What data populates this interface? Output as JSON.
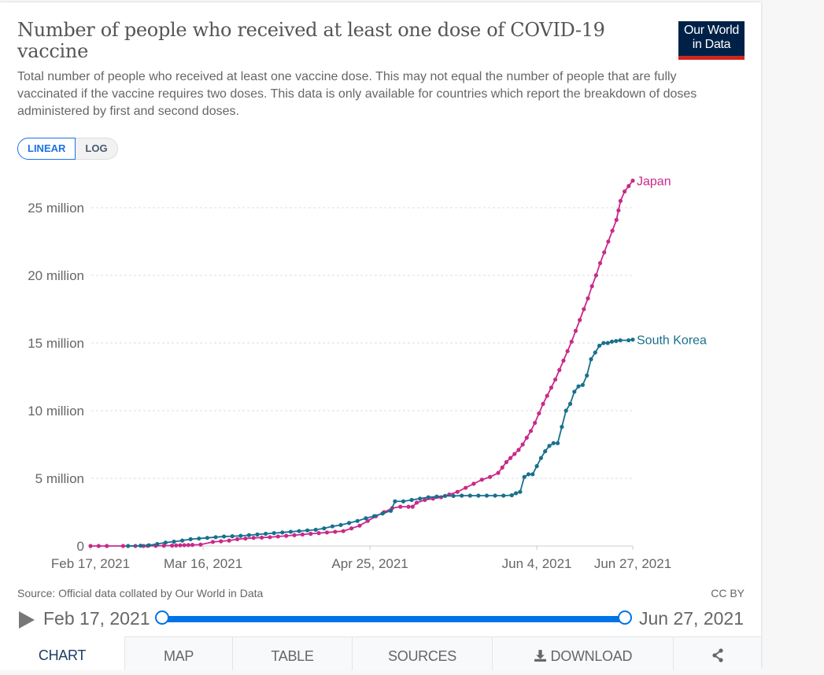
{
  "header": {
    "title": "Number of people who received at least one dose of COVID-19 vaccine",
    "subtitle": "Total number of people who received at least one vaccine dose. This may not equal the number of people that are fully vaccinated if the vaccine requires two doses. This data is only available for countries which report the breakdown of doses administered by first and second doses.",
    "logo_line1": "Our World",
    "logo_line2": "in Data"
  },
  "controls": {
    "linear_label": "LINEAR",
    "log_label": "LOG",
    "active_scale": "linear"
  },
  "footer": {
    "source": "Source: Official data collated by Our World in Data",
    "license": "CC BY"
  },
  "timeline": {
    "start_label": "Feb 17, 2021",
    "end_label": "Jun 27, 2021",
    "play_icon": "play-icon"
  },
  "tabs": [
    {
      "label": "CHART",
      "active": true
    },
    {
      "label": "MAP",
      "active": false
    },
    {
      "label": "TABLE",
      "active": false
    },
    {
      "label": "SOURCES",
      "active": false
    },
    {
      "label": "DOWNLOAD",
      "icon": "download-icon",
      "active": false
    },
    {
      "label": "",
      "icon": "share-icon",
      "active": false
    }
  ],
  "chart_data": {
    "type": "line",
    "title": "Number of people who received at least one dose of COVID-19 vaccine",
    "xlabel": "",
    "ylabel": "",
    "x_start": "2021-02-17",
    "x_end": "2021-06-27",
    "x_ticks": [
      {
        "day": 0,
        "label": "Feb 17, 2021"
      },
      {
        "day": 27,
        "label": "Mar 16, 2021"
      },
      {
        "day": 67,
        "label": "Apr 25, 2021"
      },
      {
        "day": 107,
        "label": "Jun 4, 2021"
      },
      {
        "day": 130,
        "label": "Jun 27, 2021"
      }
    ],
    "ylim": [
      0,
      27500000
    ],
    "y_ticks": [
      {
        "value": 0,
        "label": "0"
      },
      {
        "value": 5000000,
        "label": "5 million"
      },
      {
        "value": 10000000,
        "label": "10 million"
      },
      {
        "value": 15000000,
        "label": "15 million"
      },
      {
        "value": 20000000,
        "label": "20 million"
      },
      {
        "value": 25000000,
        "label": "25 million"
      }
    ],
    "grid": "horizontal-dashed",
    "legend": "inline-right",
    "series": [
      {
        "name": "Japan",
        "color": "#c92a8a",
        "points_day_millions": [
          [
            0,
            0
          ],
          [
            2,
            0
          ],
          [
            4,
            0
          ],
          [
            8,
            0
          ],
          [
            11,
            0
          ],
          [
            13,
            0
          ],
          [
            14,
            0.01
          ],
          [
            16,
            0.01
          ],
          [
            18,
            0.02
          ],
          [
            20,
            0.03
          ],
          [
            21,
            0.04
          ],
          [
            22,
            0.05
          ],
          [
            23,
            0.06
          ],
          [
            24,
            0.07
          ],
          [
            25,
            0.08
          ],
          [
            27,
            0.1
          ],
          [
            30,
            0.3
          ],
          [
            32,
            0.35
          ],
          [
            34,
            0.4
          ],
          [
            36,
            0.5
          ],
          [
            38,
            0.55
          ],
          [
            40,
            0.6
          ],
          [
            42,
            0.62
          ],
          [
            44,
            0.65
          ],
          [
            46,
            0.7
          ],
          [
            48,
            0.75
          ],
          [
            50,
            0.8
          ],
          [
            52,
            0.85
          ],
          [
            54,
            0.9
          ],
          [
            56,
            0.95
          ],
          [
            58,
            1.0
          ],
          [
            60,
            1.05
          ],
          [
            62,
            1.1
          ],
          [
            64,
            1.3
          ],
          [
            66,
            1.5
          ],
          [
            68,
            1.85
          ],
          [
            70,
            2.2
          ],
          [
            72,
            2.5
          ],
          [
            74,
            2.8
          ],
          [
            76,
            2.9
          ],
          [
            78,
            2.9
          ],
          [
            79,
            2.9
          ],
          [
            80,
            3.2
          ],
          [
            82,
            3.4
          ],
          [
            84,
            3.5
          ],
          [
            86,
            3.6
          ],
          [
            88,
            3.8
          ],
          [
            90,
            4.0
          ],
          [
            92,
            4.3
          ],
          [
            94,
            4.6
          ],
          [
            96,
            4.9
          ],
          [
            98,
            5.1
          ],
          [
            100,
            5.4
          ],
          [
            101,
            5.8
          ],
          [
            102,
            6.2
          ],
          [
            103,
            6.5
          ],
          [
            104,
            6.8
          ],
          [
            105,
            7.1
          ],
          [
            106,
            7.5
          ],
          [
            107,
            8.0
          ],
          [
            108,
            8.5
          ],
          [
            109,
            9.1
          ],
          [
            110,
            9.8
          ],
          [
            111,
            10.5
          ],
          [
            112,
            11.1
          ],
          [
            113,
            11.7
          ],
          [
            114,
            12.3
          ],
          [
            115,
            13.0
          ],
          [
            116,
            13.7
          ],
          [
            117,
            14.4
          ],
          [
            118,
            15.1
          ],
          [
            119,
            15.9
          ],
          [
            120,
            16.7
          ],
          [
            121,
            17.5
          ],
          [
            122,
            18.3
          ],
          [
            123,
            19.2
          ],
          [
            124,
            20.0
          ],
          [
            125,
            20.9
          ],
          [
            126,
            21.7
          ],
          [
            127,
            22.5
          ],
          [
            128,
            23.3
          ],
          [
            129,
            24.1
          ],
          [
            129.5,
            24.8
          ],
          [
            130,
            25.5
          ],
          [
            131,
            26.2
          ],
          [
            132,
            26.6
          ],
          [
            133,
            27.0
          ]
        ]
      },
      {
        "name": "South Korea",
        "color": "#18708e",
        "points_day_millions": [
          [
            9,
            0
          ],
          [
            12,
            0.02
          ],
          [
            14,
            0.05
          ],
          [
            16,
            0.15
          ],
          [
            18,
            0.25
          ],
          [
            20,
            0.32
          ],
          [
            22,
            0.4
          ],
          [
            24,
            0.5
          ],
          [
            26,
            0.55
          ],
          [
            28,
            0.6
          ],
          [
            30,
            0.65
          ],
          [
            32,
            0.7
          ],
          [
            34,
            0.72
          ],
          [
            36,
            0.75
          ],
          [
            38,
            0.8
          ],
          [
            40,
            0.85
          ],
          [
            42,
            0.9
          ],
          [
            44,
            0.95
          ],
          [
            46,
            1.0
          ],
          [
            48,
            1.05
          ],
          [
            50,
            1.1
          ],
          [
            52,
            1.15
          ],
          [
            54,
            1.2
          ],
          [
            56,
            1.3
          ],
          [
            58,
            1.45
          ],
          [
            60,
            1.55
          ],
          [
            62,
            1.7
          ],
          [
            64,
            1.85
          ],
          [
            66,
            2.05
          ],
          [
            68,
            2.2
          ],
          [
            70,
            2.4
          ],
          [
            72,
            2.6
          ],
          [
            73,
            3.3
          ],
          [
            75,
            3.3
          ],
          [
            77,
            3.4
          ],
          [
            79,
            3.5
          ],
          [
            81,
            3.6
          ],
          [
            83,
            3.65
          ],
          [
            85,
            3.7
          ],
          [
            87,
            3.7
          ],
          [
            89,
            3.72
          ],
          [
            91,
            3.72
          ],
          [
            93,
            3.72
          ],
          [
            95,
            3.72
          ],
          [
            97,
            3.72
          ],
          [
            99,
            3.72
          ],
          [
            101,
            3.75
          ],
          [
            102,
            3.9
          ],
          [
            103,
            4.0
          ],
          [
            104,
            5.1
          ],
          [
            105,
            5.3
          ],
          [
            106,
            5.3
          ],
          [
            107,
            5.9
          ],
          [
            108,
            6.5
          ],
          [
            109,
            7.0
          ],
          [
            110,
            7.4
          ],
          [
            111,
            7.6
          ],
          [
            112,
            7.6
          ],
          [
            113,
            8.8
          ],
          [
            114,
            10.0
          ],
          [
            115,
            10.5
          ],
          [
            116,
            11.4
          ],
          [
            117,
            11.8
          ],
          [
            118,
            11.9
          ],
          [
            119,
            12.6
          ],
          [
            120,
            13.8
          ],
          [
            121,
            14.3
          ],
          [
            122,
            14.8
          ],
          [
            123,
            15.0
          ],
          [
            124,
            15.0
          ],
          [
            125,
            15.1
          ],
          [
            126,
            15.15
          ],
          [
            127,
            15.2
          ],
          [
            129,
            15.2
          ],
          [
            130,
            15.25
          ]
        ]
      }
    ]
  }
}
